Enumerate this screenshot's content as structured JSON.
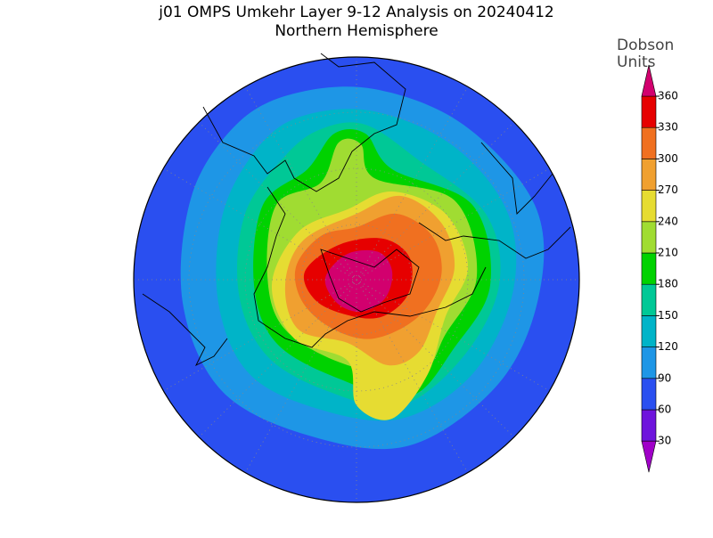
{
  "title": "j01 OMPS Umkehr Layer 9-12 Analysis on 20240412",
  "subtitle": "Northern Hemisphere",
  "colorbar": {
    "label_lines": [
      "Dobson",
      "Units"
    ],
    "levels": [
      30,
      60,
      90,
      120,
      150,
      180,
      210,
      240,
      270,
      300,
      330,
      360
    ],
    "colors": [
      "#a000c8",
      "#6e14dc",
      "#2a4ff0",
      "#1e96e6",
      "#00b4c8",
      "#00c896",
      "#00d200",
      "#a0dc32",
      "#e6dc32",
      "#f0a030",
      "#f07020",
      "#e60000",
      "#d2006e"
    ]
  }
}
